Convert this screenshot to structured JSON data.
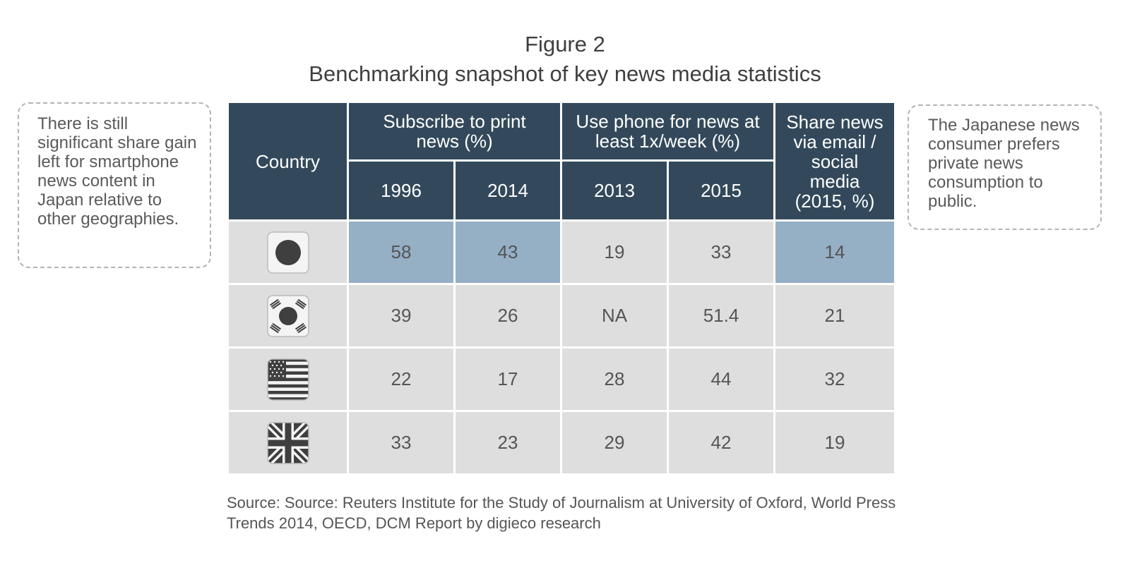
{
  "figure": {
    "label": "Figure 2",
    "title": "Benchmarking snapshot of key news media statistics"
  },
  "notes": {
    "left": "There is still significant share gain left for smartphone news content in Japan relative to other geographies.",
    "right": "The Japanese news consumer prefers private news consumption to public."
  },
  "table": {
    "country_header": "Country",
    "groups": {
      "print": "Subscribe to print news (%)",
      "phone": "Use phone for news at least 1x/week (%)",
      "share": "Share news via email / social media (2015, %)"
    },
    "years": {
      "print_a": "1996",
      "print_b": "2014",
      "phone_a": "2013",
      "phone_b": "2015"
    },
    "rows": [
      {
        "flag": "japan-flag-icon",
        "values": [
          "58",
          "43",
          "19",
          "33",
          "14"
        ],
        "highlight": [
          true,
          true,
          false,
          false,
          true
        ]
      },
      {
        "flag": "south-korea-flag-icon",
        "values": [
          "39",
          "26",
          "NA",
          "51.4",
          "21"
        ],
        "highlight": [
          false,
          false,
          false,
          false,
          false
        ]
      },
      {
        "flag": "usa-flag-icon",
        "values": [
          "22",
          "17",
          "28",
          "44",
          "32"
        ],
        "highlight": [
          false,
          false,
          false,
          false,
          false
        ]
      },
      {
        "flag": "uk-flag-icon",
        "values": [
          "33",
          "23",
          "29",
          "42",
          "19"
        ],
        "highlight": [
          false,
          false,
          false,
          false,
          false
        ]
      }
    ]
  },
  "colors": {
    "header_bg": "#33495b",
    "cell_bg": "#dedede",
    "highlight_bg": "#95afc5",
    "flag_fill": "#3f3f3f"
  },
  "source": "Source: Source: Reuters Institute for the Study of Journalism at University of Oxford, World Press Trends 2014, OECD, DCM Report by digieco research"
}
